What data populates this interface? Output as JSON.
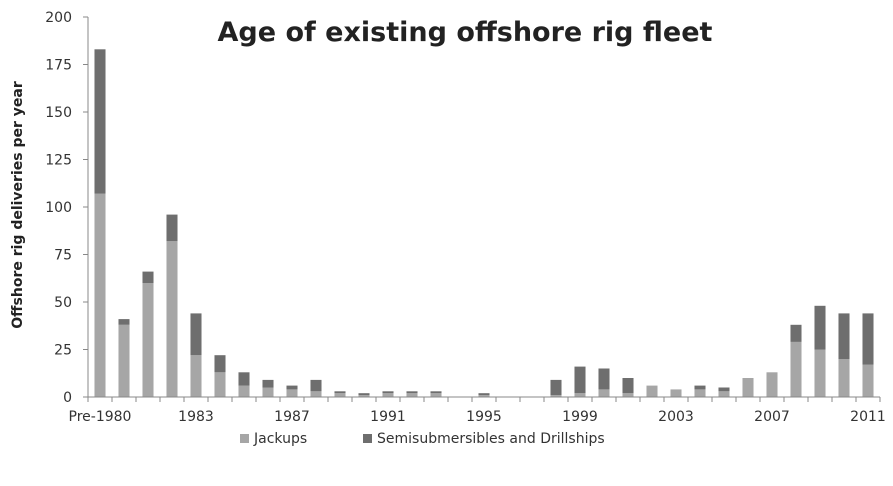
{
  "chart_data": {
    "type": "bar",
    "stacked": true,
    "title": "Age of existing offshore rig fleet",
    "xlabel": "",
    "ylabel": "Offshore rig deliveries per year",
    "ylim": [
      0,
      200
    ],
    "yticks": [
      0,
      25,
      50,
      75,
      100,
      125,
      150,
      175,
      200
    ],
    "grid": false,
    "legend_position": "bottom",
    "categories": [
      "Pre-1980",
      "1980",
      "1981",
      "1982",
      "1983",
      "1984",
      "1985",
      "1986",
      "1987",
      "1988",
      "1989",
      "1990",
      "1991",
      "1992",
      "1993",
      "1994",
      "1995",
      "1996",
      "1997",
      "1998",
      "1999",
      "2000",
      "2001",
      "2002",
      "2003",
      "2004",
      "2005",
      "2006",
      "2007",
      "2008",
      "2009",
      "2010",
      "2011"
    ],
    "xtick_labels": [
      "Pre-1980",
      "",
      "",
      "",
      "1983",
      "",
      "",
      "",
      "1987",
      "",
      "",
      "",
      "1991",
      "",
      "",
      "",
      "1995",
      "",
      "",
      "",
      "1999",
      "",
      "",
      "",
      "2003",
      "",
      "",
      "",
      "2007",
      "",
      "",
      "",
      "2011"
    ],
    "series": [
      {
        "name": "Jackups",
        "color": "#a6a6a6",
        "values": [
          107,
          38,
          60,
          82,
          22,
          13,
          6,
          5,
          4,
          3,
          2,
          1,
          2,
          2,
          2,
          0,
          1,
          0,
          0,
          1,
          2,
          4,
          2,
          6,
          4,
          4,
          3,
          10,
          13,
          29,
          25,
          20,
          17
        ]
      },
      {
        "name": "Semisubmersibles and Drillships",
        "color": "#6e6e6e",
        "values": [
          76,
          3,
          6,
          14,
          22,
          9,
          7,
          4,
          2,
          6,
          1,
          1,
          1,
          1,
          1,
          0,
          1,
          0,
          0,
          8,
          14,
          11,
          8,
          0,
          0,
          2,
          2,
          0,
          0,
          9,
          23,
          24,
          27
        ]
      }
    ]
  }
}
